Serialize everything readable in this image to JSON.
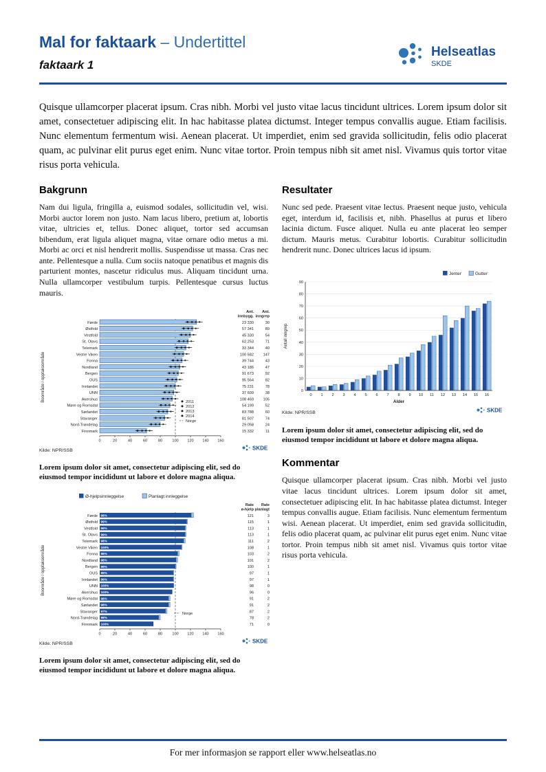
{
  "header": {
    "title_bold": "Mal for faktaark",
    "title_rest": " – Undertittel",
    "subtitle": "faktaark 1",
    "logo": {
      "name": "Helseatlas",
      "sub": "SKDE"
    }
  },
  "intro": "Quisque ullamcorper placerat ipsum. Cras nibh. Morbi vel justo vitae lacus tincidunt ultrices. Lorem ipsum dolor sit amet, consectetuer adipiscing elit. In hac habitasse platea dictumst. Integer tempus convallis augue. Etiam facilisis. Nunc elementum fermentum wisi. Aenean placerat. Ut imperdiet, enim sed gravida sollicitudin, felis odio placerat quam, ac pulvinar elit purus eget enim. Nunc vitae tortor. Proin tempus nibh sit amet nisl. Vivamus quis tortor vitae risus porta vehicula.",
  "sections": {
    "bakgrunn": {
      "heading": "Bakgrunn",
      "body": "Nam dui ligula, fringilla a, euismod sodales, sollicitudin vel, wisi. Morbi auctor lorem non justo. Nam lacus libero, pretium at, lobortis vitae, ultricies et, tellus. Donec aliquet, tortor sed accumsan bibendum, erat ligula aliquet magna, vitae ornare odio metus a mi. Morbi ac orci et nisl hendrerit mollis. Suspendisse ut massa. Cras nec ante. Pellentesque a nulla. Cum sociis natoque penatibus et magnis dis parturient montes, nascetur ridiculus mus. Aliquam tincidunt urna. Nulla ullamcorper vestibulum turpis. Pellentesque cursus luctus mauris."
    },
    "resultater": {
      "heading": "Resultater",
      "body": "Nunc sed pede. Praesent vitae lectus. Praesent neque justo, vehicula eget, interdum id, facilisis et, nibh. Phasellus at purus et libero lacinia dictum. Fusce aliquet. Nulla eu ante placerat leo semper dictum. Mauris metus. Curabitur lobortis. Curabitur sollicitudin hendrerit nunc. Donec ultrices lacus id ipsum."
    },
    "kommentar": {
      "heading": "Kommentar",
      "body": "Quisque ullamcorper placerat ipsum. Cras nibh. Morbi vel justo vitae lacus tincidunt ultrices. Lorem ipsum dolor sit amet, consectetuer adipiscing elit. In hac habitasse platea dictumst. Integer tempus convallis augue. Etiam facilisis. Nunc elementum fermentum wisi. Aenean placerat. Ut imperdiet, enim sed gravida sollicitudin, felis odio placerat quam, ac pulvinar elit purus eget enim. Nunc vitae tortor. Proin tempus nibh sit amet nisl. Vivamus quis tortor vitae risus porta vehicula."
    }
  },
  "captions": {
    "chart1": "Lorem ipsum dolor sit amet, consectetur adipiscing elit, sed do eiusmod tempor incididunt ut labore et dolore magna aliqua.",
    "chart2": "Lorem ipsum dolor sit amet, consectetur adipiscing elit, sed do eiusmod tempor incididunt ut labore et dolore magna aliqua.",
    "chart3": "Lorem ipsum dolor sit amet, consectetur adipiscing elit, sed do eiusmod tempor incididunt ut labore et dolore magna aliqua."
  },
  "footer_text": "For mer informasjon se rapport eller www.helseatlas.no",
  "colors": {
    "accent": "#1b4f9e",
    "bar_dark": "#1f4e9b",
    "bar_light": "#9dc3e6",
    "logo_dot": "#2e75b6"
  },
  "chart_data": [
    {
      "id": "rates-by-bostedsomrade",
      "type": "bar",
      "orientation": "horizontal",
      "ylabel": "Boområde / opptaksområde",
      "col_headers": [
        "Ant. innbygg.",
        "Ant. inngrep"
      ],
      "categories": [
        "Førde",
        "Østfold",
        "Vestfold",
        "St. Olavs",
        "Telemark",
        "Vestre Viken",
        "Fonna",
        "Nordland",
        "Bergen",
        "OUS",
        "Innlandet",
        "UNN",
        "Akershus",
        "Møre og Romsdal",
        "Sørlandet",
        "Stavanger",
        "Nord-Trøndelag",
        "Finnmark"
      ],
      "values": [
        128,
        123,
        120,
        117,
        114,
        111,
        109,
        106,
        104,
        102,
        100,
        98,
        96,
        93,
        90,
        86,
        80,
        62
      ],
      "innbygg": [
        "23 330",
        "57 341",
        "45 330",
        "62 253",
        "33 344",
        "100 582",
        "39 744",
        "43 186",
        "91 673",
        "95 564",
        "75 231",
        "37 609",
        "108 469",
        "54 199",
        "83 788",
        "81 507",
        "29 058",
        "15 332"
      ],
      "inngrep": [
        "30",
        "89",
        "54",
        "71",
        "40",
        "147",
        "43",
        "47",
        "92",
        "82",
        "78",
        "38",
        "105",
        "52",
        "60",
        "74",
        "24",
        "11"
      ],
      "legend_years": [
        "2011",
        "2012",
        "2013",
        "2014"
      ],
      "norge_label": "Norge",
      "norge_value": 100,
      "xlim": [
        0,
        160
      ],
      "xticks": [
        0,
        20,
        40,
        60,
        80,
        100,
        120,
        140,
        160
      ],
      "source": "Kilde: NPR/SSB"
    },
    {
      "id": "ohjelp-vs-planlagt",
      "type": "bar",
      "orientation": "horizontal-stacked",
      "ylabel": "Boområde / opptaksområde",
      "legend": [
        "Ø-hjelpsinnleggelse",
        "Planlagt innleggelse"
      ],
      "col_headers": [
        "Rate ø-hjelp",
        "Rate planlagt"
      ],
      "categories": [
        "Førde",
        "Østfold",
        "Vestfold",
        "St. Olavs",
        "Telemark",
        "Vestre Viken",
        "Fonna",
        "Nordland",
        "Bergen",
        "OUS",
        "Innlandet",
        "UNN",
        "Akershus",
        "Møre og Romsdal",
        "Sørlandet",
        "Stavanger",
        "Nord-Trøndelag",
        "Finnmark"
      ],
      "pct_labels": [
        "98%",
        "99%",
        "99%",
        "99%",
        "98%",
        "100%",
        "98%",
        "98%",
        "99%",
        "99%",
        "99%",
        "100%",
        "100%",
        "98%",
        "98%",
        "97%",
        "98%",
        "100%"
      ],
      "rate_ohjelp": [
        121,
        115,
        113,
        113,
        111,
        108,
        103,
        101,
        100,
        97,
        97,
        98,
        96,
        91,
        91,
        87,
        78,
        71
      ],
      "rate_planlagt": [
        3,
        1,
        1,
        1,
        2,
        1,
        2,
        2,
        1,
        1,
        1,
        0,
        0,
        2,
        2,
        2,
        2,
        0
      ],
      "norge_label": "Norge",
      "norge_value": 100,
      "xlim": [
        0,
        160
      ],
      "xticks": [
        0,
        20,
        40,
        60,
        80,
        100,
        120,
        140,
        160
      ],
      "source": "Kilde: NPR/SSB"
    },
    {
      "id": "inngrep-etter-alder",
      "type": "bar",
      "orientation": "vertical",
      "categories": [
        "0",
        "1",
        "2",
        "3",
        "4",
        "5",
        "6",
        "7",
        "8",
        "9",
        "10",
        "11",
        "12",
        "13",
        "14",
        "15",
        "16"
      ],
      "series": [
        {
          "name": "Jenter",
          "values": [
            3,
            3,
            4,
            5,
            7,
            10,
            13,
            17,
            22,
            28,
            33,
            40,
            46,
            52,
            60,
            66,
            72
          ]
        },
        {
          "name": "Gutter",
          "values": [
            4,
            3,
            5,
            6,
            9,
            12,
            16,
            21,
            27,
            31,
            38,
            45,
            62,
            58,
            70,
            68,
            74
          ]
        }
      ],
      "xlabel": "Alder",
      "ylabel": "Antall inngrep",
      "ylim": [
        0,
        90
      ],
      "yticks": [
        0,
        10,
        20,
        30,
        40,
        50,
        60,
        70,
        80,
        90
      ],
      "source": "Kilde: NPR/SSB"
    }
  ]
}
